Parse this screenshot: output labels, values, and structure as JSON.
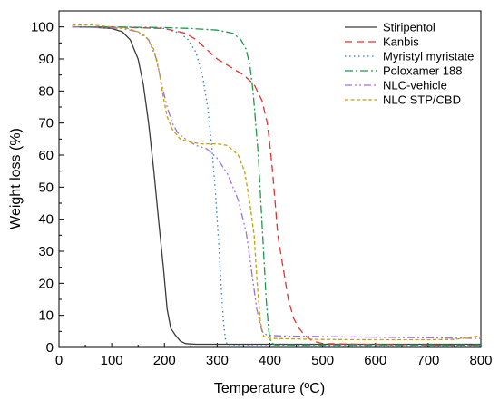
{
  "chart_data": {
    "type": "line",
    "title": "",
    "xlabel": "Temperature (ºC)",
    "ylabel": "Weight loss (%)",
    "xlim": [
      0,
      800
    ],
    "ylim": [
      0,
      105
    ],
    "xticks": [
      0,
      100,
      200,
      300,
      400,
      500,
      600,
      700,
      800
    ],
    "yticks": [
      0,
      10,
      20,
      30,
      40,
      50,
      60,
      70,
      80,
      90,
      100
    ],
    "grid": false,
    "legend": "top-right",
    "series": [
      {
        "name": "Stiripentol",
        "color": "#3a3a3a",
        "dash": "solid",
        "points": [
          [
            25,
            100
          ],
          [
            60,
            99.9
          ],
          [
            100,
            99.5
          ],
          [
            120,
            98.5
          ],
          [
            135,
            96
          ],
          [
            150,
            90
          ],
          [
            160,
            82
          ],
          [
            170,
            70
          ],
          [
            180,
            55
          ],
          [
            190,
            38
          ],
          [
            198,
            25
          ],
          [
            205,
            12
          ],
          [
            212,
            6
          ],
          [
            220,
            4
          ],
          [
            230,
            2
          ],
          [
            240,
            1.2
          ],
          [
            260,
            1
          ],
          [
            300,
            1
          ],
          [
            400,
            1
          ],
          [
            500,
            1
          ],
          [
            600,
            1
          ],
          [
            700,
            1
          ],
          [
            800,
            1
          ]
        ]
      },
      {
        "name": "Kanbis",
        "color": "#e8302a",
        "dash": "long",
        "points": [
          [
            25,
            100
          ],
          [
            100,
            100
          ],
          [
            200,
            99.5
          ],
          [
            240,
            98
          ],
          [
            260,
            96
          ],
          [
            280,
            93
          ],
          [
            300,
            90
          ],
          [
            330,
            87
          ],
          [
            350,
            85
          ],
          [
            370,
            82
          ],
          [
            385,
            77
          ],
          [
            395,
            70
          ],
          [
            400,
            63
          ],
          [
            405,
            55
          ],
          [
            410,
            45
          ],
          [
            415,
            35
          ],
          [
            425,
            25
          ],
          [
            435,
            15
          ],
          [
            445,
            9
          ],
          [
            455,
            6
          ],
          [
            465,
            4
          ],
          [
            480,
            2
          ],
          [
            500,
            1.2
          ],
          [
            600,
            0.9
          ],
          [
            700,
            0.8
          ],
          [
            800,
            0.6
          ]
        ]
      },
      {
        "name": "Myristyl myristate",
        "color": "#2f7fd0",
        "dash": "dot",
        "points": [
          [
            25,
            100
          ],
          [
            100,
            100
          ],
          [
            200,
            99.5
          ],
          [
            230,
            98
          ],
          [
            245,
            96
          ],
          [
            260,
            92
          ],
          [
            272,
            85
          ],
          [
            282,
            75
          ],
          [
            290,
            62
          ],
          [
            297,
            48
          ],
          [
            303,
            32
          ],
          [
            308,
            18
          ],
          [
            312,
            8
          ],
          [
            316,
            2
          ],
          [
            320,
            0.6
          ],
          [
            400,
            0.5
          ],
          [
            500,
            0.4
          ],
          [
            600,
            0.4
          ],
          [
            700,
            0.4
          ],
          [
            800,
            0.4
          ]
        ]
      },
      {
        "name": "Poloxamer 188",
        "color": "#1a9a4a",
        "dash": "dashdot",
        "points": [
          [
            25,
            100
          ],
          [
            100,
            100
          ],
          [
            200,
            99.8
          ],
          [
            250,
            99.5
          ],
          [
            300,
            99
          ],
          [
            330,
            98
          ],
          [
            345,
            96
          ],
          [
            355,
            93
          ],
          [
            362,
            88
          ],
          [
            368,
            80
          ],
          [
            373,
            70
          ],
          [
            378,
            60
          ],
          [
            383,
            45
          ],
          [
            388,
            30
          ],
          [
            393,
            15
          ],
          [
            398,
            5
          ],
          [
            402,
            1.5
          ],
          [
            410,
            0.8
          ],
          [
            500,
            0.8
          ],
          [
            600,
            0.8
          ],
          [
            700,
            0.8
          ],
          [
            800,
            0.8
          ]
        ]
      },
      {
        "name": "NLC-vehicle",
        "color": "#a070e0",
        "dash": "dashdotdot",
        "points": [
          [
            25,
            100
          ],
          [
            80,
            99.8
          ],
          [
            120,
            99.5
          ],
          [
            150,
            98.5
          ],
          [
            170,
            96
          ],
          [
            185,
            90
          ],
          [
            195,
            82
          ],
          [
            205,
            75
          ],
          [
            215,
            70
          ],
          [
            225,
            67
          ],
          [
            240,
            65
          ],
          [
            260,
            63
          ],
          [
            280,
            62
          ],
          [
            300,
            59
          ],
          [
            320,
            54
          ],
          [
            340,
            46
          ],
          [
            355,
            36
          ],
          [
            365,
            24
          ],
          [
            375,
            12
          ],
          [
            385,
            5
          ],
          [
            395,
            3.8
          ],
          [
            420,
            3.6
          ],
          [
            500,
            3.4
          ],
          [
            600,
            3.2
          ],
          [
            700,
            3
          ],
          [
            800,
            2.8
          ]
        ]
      },
      {
        "name": "NLC STP/CBD",
        "color": "#c8a000",
        "dash": "shortdash",
        "points": [
          [
            25,
            100.5
          ],
          [
            60,
            100.6
          ],
          [
            100,
            100
          ],
          [
            130,
            99.5
          ],
          [
            150,
            98.5
          ],
          [
            165,
            97
          ],
          [
            180,
            93
          ],
          [
            190,
            86
          ],
          [
            198,
            78
          ],
          [
            205,
            72
          ],
          [
            215,
            68
          ],
          [
            230,
            65
          ],
          [
            250,
            64
          ],
          [
            270,
            63.5
          ],
          [
            300,
            63.5
          ],
          [
            320,
            63
          ],
          [
            340,
            60
          ],
          [
            352,
            55
          ],
          [
            362,
            45
          ],
          [
            370,
            35
          ],
          [
            376,
            20
          ],
          [
            382,
            8
          ],
          [
            388,
            3.5
          ],
          [
            400,
            2.8
          ],
          [
            500,
            2.5
          ],
          [
            600,
            2.4
          ],
          [
            700,
            2.4
          ],
          [
            750,
            2.5
          ],
          [
            800,
            3.6
          ]
        ]
      }
    ]
  }
}
